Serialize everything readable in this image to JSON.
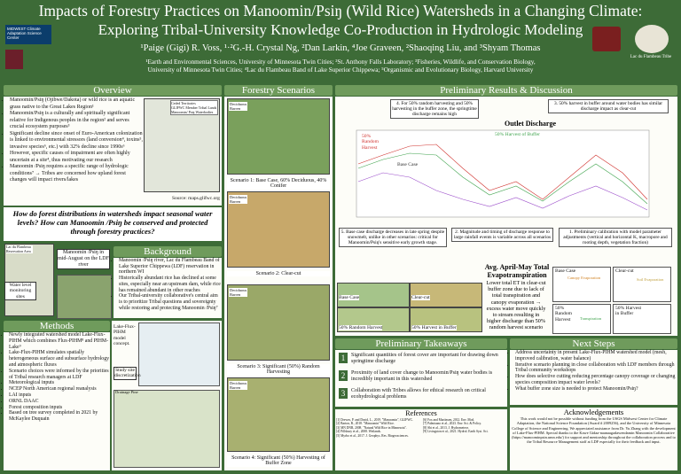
{
  "header": {
    "title": "Impacts of Forestry Practices on Manoomin/Psiŋ (Wild Rice) Watersheds in a Changing Climate:",
    "subtitle": "Exploring Tribal-University Knowledge Co-Production in Hydrologic Modeling",
    "authors": "¹Paige (Gigi) R. Voss, ¹·²G.-H. Crystal Ng, ²Dan Larkin, ⁴Joe Graveen, ²Shaoqing Liu, and ³Shyam Thomas",
    "affiliations": [
      "¹Earth and Environmental Sciences, University of Minnesota Twin Cities; ²St. Anthony Falls Laboratory; ³Fisheries, Wildlife, and Conservation Biology,",
      "University of Minnesota Twin Cities; ⁴Lac du Flambeau Band of Lake Superior Chippewa; ⁵Organismic and Evolutionary Biology, Harvard University"
    ],
    "logo_left": "MIDWEST Climate Adaptation Science Center",
    "logo_right": "Lac du Flambeau Tribe"
  },
  "overview": {
    "title": "Overview",
    "items": [
      "Manoomin/Psiŋ (Ojibwe/Dakota) or wild rice is an aquatic grass native to the Great Lakes Region¹",
      "Manoomin/Psiŋ is a culturally and spiritually significant relative for Indigenous peoples in the region² and serves crucial ecosystem purposes³",
      "Significant decline since onset of Euro-American colonization is linked to environmental stressors (land conversion⁴, toxins⁵, invasive species⁶, etc.) with 32% decline since 1990s⁶",
      "However, specific causes of impairment are often highly uncertain at a site⁴, thus motivating our research",
      "Manoomin /Psiŋ requires a specific range of hydrologic conditions⁷ → Tribes are concerned how upland forest changes will impact rivers/lakes"
    ],
    "map_legend": [
      "Ceded Territories",
      "GLIFWC Member Tribal Lands",
      "Manoomin/ Psiŋ Waterbodies"
    ],
    "map_source": "Source: maps.glifwc.org"
  },
  "question": "How do forest distributions in watersheds impact seasonal water levels? How can Manoomin /Psiŋ be conserved and protected through forestry practices?",
  "site": {
    "map_label": "Lac du Flambeau Reservation Area",
    "sites_label": "Water level monitoring sites",
    "photo_caption": "Manoomin /Psiŋ in mid-August on the LDF river"
  },
  "background": {
    "title": "Background",
    "items": [
      "Manoomin /Psiŋ river, Lac du Flambeau Band of Lake Superior Chippewa (LDF) reservation in northern WI",
      "Historically abundant rice has declined at some sites, especially near an upstream dam, while rice has remained abundant in other reaches",
      "Our Tribal-university collaborative's central aim is to prioritize Tribal questions and sovereignty while restoring and protecting Manoomin /Psiŋ⁷"
    ]
  },
  "methods": {
    "title": "Methods",
    "items": [
      "Newly integrated watershed model Lake-Flux-PIHM which combines Flux-PIHM⁸ and PIHM-Lake⁹",
      "Lake-Flux-PIHM simulates spatially heterogeneous surface and subsurface hydrology and atmospheric fluxes",
      "Scenario choices were informed by the priorities of Tribal research managers at LDF",
      "Meteorological inputs",
      "NCEP North American regional reanalysis",
      "LAI inputs",
      "ORNL DAAC",
      "Forest composition inputs",
      "Based on tree survey completed in 2021 by McKaylee Duquain"
    ],
    "fig_caption": "Lake-Flux-PIHM model concept.",
    "fig2_caption": "Study site discretization",
    "fig3_label": "Drainage Pine"
  },
  "forestry": {
    "title": "Forestry Scenarios",
    "legend": [
      "Deciduous",
      "Barren"
    ],
    "scenarios": [
      "Scenario 1: Base Case, 60% Deciduous, 40% Conifer",
      "Scenario 2: Clear-cut",
      "Scenario 3: Significant (50%) Random Harvesting",
      "Scenario 4: Significant (50%) Harvesting of Buffer Zone"
    ]
  },
  "results": {
    "title": "Preliminary Results & Discussion",
    "callouts": [
      "4. For 50% random harvesting and 50% harvesting in the buffer zone, the springtime discharge remains high",
      "3. 50% harvest in buffer around water bodies has similar discharge impact as clear-cut",
      "5. Base case discharge decreases in late spring despite snowmelt, unlike in other scenarios: critical for Manoomin/Psiŋ's sensitive early growth stage.",
      "2. Magnitude and timing of discharge response to large rainfall events is variable across all scenarios",
      "1. Preliminary calibration with model parameter adjustments (vertical and horizontal K, macropore and rooting depth, vegetation fraction)"
    ],
    "discharge_title": "Outlet Discharge",
    "discharge_labels": [
      "50% Random Harvest",
      "50% Harvest of Buffer",
      "Base Case"
    ],
    "et_title": "Avg. April-May Total Evapotranspiration",
    "et_labels": [
      "Base Case",
      "Clear-cut",
      "50% Random Harvest",
      "50% Harvest in Buffer"
    ],
    "et_callout": "Lower total ET in clear-cut buffer zone due to lack of total transpiration and canopy evaporation → excess water move quickly to stream resulting in higher discharge than 50% random harvest scenario",
    "small_labels": [
      "Base Case",
      "Clear-cut",
      "50% Random Harvest",
      "50% Harvest in Buffer"
    ],
    "small_legend": [
      "Canopy Evaporation",
      "Soil Evaporation",
      "Transpiration"
    ]
  },
  "takeaways": {
    "title": "Preliminary Takeaways",
    "items": [
      {
        "num": "1",
        "text": "Significant quantities of forest cover are important for drawing down springtime discharge"
      },
      {
        "num": "2",
        "text": "Proximity of land cover change to Manoomin/Psiŋ water bodies is incredibly important in this watershed"
      },
      {
        "num": "3",
        "text": "Collaboration with Tribes allows for ethical research on critical ecohydrological problems"
      }
    ]
  },
  "nextsteps": {
    "title": "Next Steps",
    "items": [
      "Address uncertainty in present Lake-Flux-PIHM watershed model (mesh, improved calibration, water balance)",
      "Iterative scenario planning in close collaboration with LDF members through Tribal community workshops",
      "How does selective cutting reducing percentage canopy coverage or changing species composition impact water levels?",
      "What buffer zone size is needed to protect Manoomin/Psiŋ?"
    ]
  },
  "references": {
    "title": "References",
    "items": [
      "[1] Drewes, P. and David, L., 2019. \"Manoomin\", GLIFWC.",
      "[2] Barton, B., 2018. \"Manoomin\" Wild Rice.",
      "[3] MN DNR, 2008. \"Natural Wild Rice in Minnesota\".",
      "[4] Pillsbury et al., 2008. Wetlands.",
      "[5] Myrbo et al., 2017. J. Geophys. Res. Biogeosciences.",
      "[6] Fox and Martinsen, 2012. Env. Mod.",
      "[7] Palmisano et al., 2023. Env. Sci. & Policy.",
      "[8] Shi et al., 2013. J. Hydrometeor.",
      "[9] Livingston et al., 2021. Hydrol. Earth Syst. Sci."
    ]
  },
  "acknowledgements": {
    "title": "Acknowledgements",
    "text": "This work would not be possible without funding from the USGS Midwest Center for Climate Adaptation, the National Science Foundation (Award # 2009256), and the University of Minnesota College of Science and Engineering. We appreciated assistance from Dr. Yu Zhang with the development of Lake-Flux-PIHM. Special thanks to the Kawe Gidaa-naanaagadawendamin Manoomin Collaborative (https://manoominpsin.umn.edu/) for support and mentorship throughout the collaboration process and to the Tribal Resource Management staff at LDF especially for their feedback and input."
  }
}
